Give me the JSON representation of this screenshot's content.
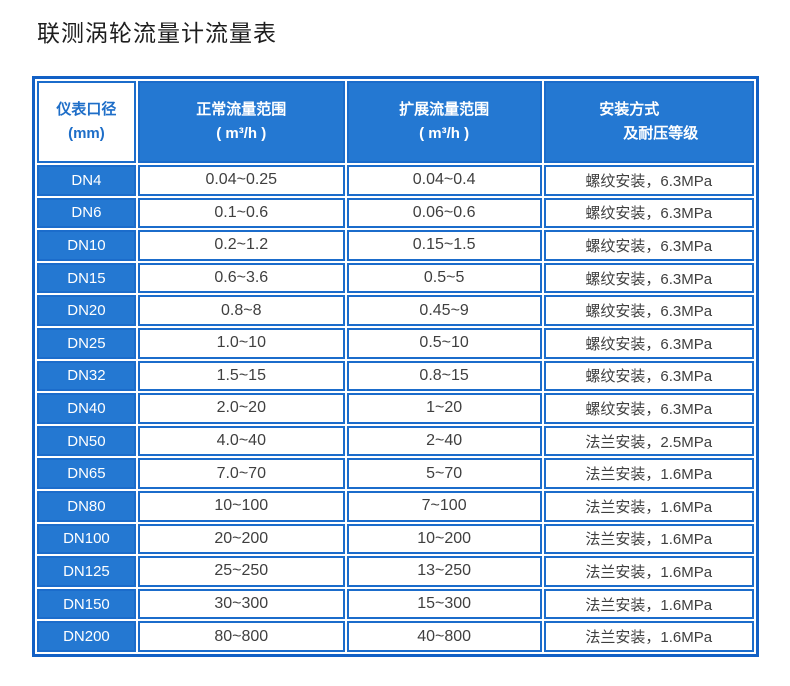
{
  "title": "联测涡轮流量计流量表",
  "colors": {
    "outer_border": "#1260C5",
    "border": "#1B6CCB",
    "header_bg": "#2478D2",
    "header_col1_text": "#1E6EC8",
    "body_text": "#3F3F3F",
    "title_text": "#1D1D1D"
  },
  "table": {
    "headers": {
      "diameter": {
        "line1": "仪表口径",
        "line2": "(mm)"
      },
      "normal": {
        "line1": "正常流量范围",
        "line2": "( m³/h )"
      },
      "extended": {
        "line1": "扩展流量范围",
        "line2": "( m³/h )"
      },
      "install": {
        "line1": "安装方式",
        "line2": "及耐压等级"
      }
    },
    "rows": [
      {
        "dn": "DN4",
        "normal": "0.04~0.25",
        "extended": "0.04~0.4",
        "install": "螺纹安装，6.3MPa"
      },
      {
        "dn": "DN6",
        "normal": "0.1~0.6",
        "extended": "0.06~0.6",
        "install": "螺纹安装，6.3MPa"
      },
      {
        "dn": "DN10",
        "normal": "0.2~1.2",
        "extended": "0.15~1.5",
        "install": "螺纹安装，6.3MPa"
      },
      {
        "dn": "DN15",
        "normal": "0.6~3.6",
        "extended": "0.5~5",
        "install": "螺纹安装，6.3MPa"
      },
      {
        "dn": "DN20",
        "normal": "0.8~8",
        "extended": "0.45~9",
        "install": "螺纹安装，6.3MPa"
      },
      {
        "dn": "DN25",
        "normal": "1.0~10",
        "extended": "0.5~10",
        "install": "螺纹安装，6.3MPa"
      },
      {
        "dn": "DN32",
        "normal": "1.5~15",
        "extended": "0.8~15",
        "install": "螺纹安装，6.3MPa"
      },
      {
        "dn": "DN40",
        "normal": "2.0~20",
        "extended": "1~20",
        "install": "螺纹安装，6.3MPa"
      },
      {
        "dn": "DN50",
        "normal": "4.0~40",
        "extended": "2~40",
        "install": "法兰安装，2.5MPa"
      },
      {
        "dn": "DN65",
        "normal": "7.0~70",
        "extended": "5~70",
        "install": "法兰安装，1.6MPa"
      },
      {
        "dn": "DN80",
        "normal": "10~100",
        "extended": "7~100",
        "install": "法兰安装，1.6MPa"
      },
      {
        "dn": "DN100",
        "normal": "20~200",
        "extended": "10~200",
        "install": "法兰安装，1.6MPa"
      },
      {
        "dn": "DN125",
        "normal": "25~250",
        "extended": "13~250",
        "install": "法兰安装，1.6MPa"
      },
      {
        "dn": "DN150",
        "normal": "30~300",
        "extended": "15~300",
        "install": "法兰安装，1.6MPa"
      },
      {
        "dn": "DN200",
        "normal": "80~800",
        "extended": "40~800",
        "install": "法兰安装，1.6MPa"
      }
    ]
  }
}
